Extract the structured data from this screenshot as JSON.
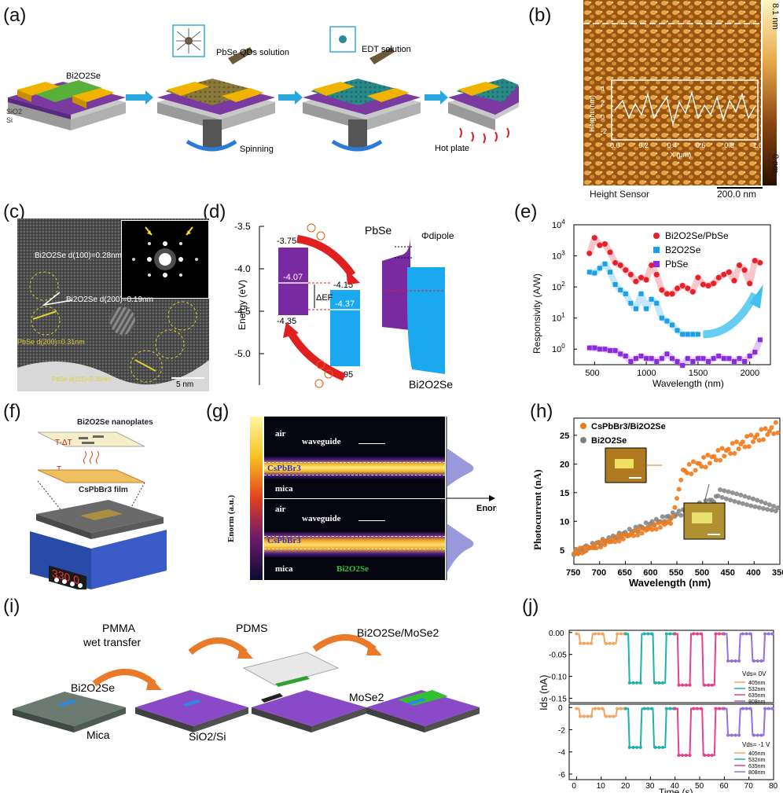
{
  "panel_labels": {
    "a": "(a)",
    "b": "(b)",
    "c": "(c)",
    "d": "(d)",
    "e": "(e)",
    "f": "(f)",
    "g": "(g)",
    "h": "(h)",
    "i": "(i)",
    "j": "(j)"
  },
  "panel_a": {
    "bi2o2se": "Bi2O2Se",
    "sio2": "SiO2",
    "si": "Si",
    "pbse_solution": "PbSe QDs solution",
    "edt_solution": "EDT solution",
    "spinning": "Spinning",
    "hot_plate": "Hot plate"
  },
  "panel_b": {
    "scale_max": "8.1 nm",
    "scale_min": "0 nm",
    "sensor": "Height Sensor",
    "scalebar": "200.0 nm",
    "ylabel": "Height (nm)",
    "xlabel": "X (μm)",
    "yticks": [
      "4",
      "2",
      "0",
      "-2",
      "-4"
    ],
    "xticks": [
      "0.0",
      "0.2",
      "0.4",
      "0.6",
      "0.8",
      "1.0"
    ]
  },
  "panel_c": {
    "d100": "Bi2O2Se d(100)=0.28nm",
    "d200": "Bi2O2Se d(200)=0.19nm",
    "pbse200": "PbSe d(200)=0.31nm",
    "pbse111": "PbSe d(111)=0.35nm",
    "scalebar": "5 nm"
  },
  "panel_d": {
    "ylabel": "Energy (eV)",
    "yticks": [
      "-3.5",
      "-4.0",
      "-4.5",
      "-5.0"
    ],
    "values": {
      "cb_pbse": "-3.75",
      "vb_pbse": "-4.35",
      "ef_pbse": "-4.07",
      "cb_bi": "-4.15",
      "ef_bi": "-4.37",
      "vb_bi": "-4.95"
    },
    "delta_ef": "ΔEF",
    "pbse": "PbSe",
    "phi": "Φdipole",
    "bi2o2se": "Bi2O2Se"
  },
  "panel_e": {
    "ylabel": "Responsivity (A/W)",
    "xlabel": "Wavelength (nm)",
    "xticks": [
      "500",
      "1000",
      "1500",
      "2000"
    ],
    "yticks": [
      "10^4",
      "10^3",
      "10^2",
      "10^1",
      "10^0"
    ],
    "legend": [
      "Bi2O2Se/PbSe",
      "B2O2Se",
      "PbSe"
    ],
    "colors": {
      "hetero": "#e8202a",
      "bi": "#1aa0e8",
      "pbse": "#8a2be2"
    }
  },
  "panel_f": {
    "top": "Bi2O2Se nanoplates",
    "t_dt": "T-ΔT",
    "t": "T",
    "film": "CsPbBr3 film",
    "display": "330.0"
  },
  "panel_g": {
    "scale": "Enorm (a.u.)",
    "air": "air",
    "waveguide": "waveguide",
    "cspbbr3": "CsPbBr3",
    "mica": "mica",
    "bi2o2se": "Bi2O2Se",
    "enorm": "Enorm"
  },
  "panel_h": {
    "ylabel": "Photocurrent (nA)",
    "xlabel": "Wavelength (nm)",
    "legend": [
      "CsPbBr3/Bi2O2Se",
      "Bi2O2Se"
    ],
    "xticks": [
      "750",
      "700",
      "650",
      "600",
      "550",
      "500",
      "450",
      "400",
      "350"
    ],
    "yticks": [
      "5",
      "10",
      "15",
      "20",
      "25"
    ],
    "colors": {
      "hetero": "#f07a1a",
      "bi": "#808080"
    }
  },
  "panel_i": {
    "pmma": "PMMA",
    "wet": "wet transfer",
    "pdms": "PDMS",
    "hetero": "Bi2O2Se/MoSe2",
    "bi": "Bi2O2Se",
    "mica": "Mica",
    "sio2si": "SiO2/Si",
    "mose2": "MoSe2"
  },
  "panel_j": {
    "ylabel": "Ids (nA)",
    "xlabel": "Time (s)",
    "xticks": [
      "0",
      "10",
      "20",
      "30",
      "40",
      "50",
      "60",
      "70",
      "80"
    ],
    "yticks_top": [
      "0.00",
      "-0.05",
      "-0.10",
      "-0.15"
    ],
    "yticks_bot": [
      "0",
      "-2",
      "-4",
      "-6"
    ],
    "vds_top": "Vds= 0V",
    "vds_bot": "Vds= -1 V",
    "legend": [
      "405nm",
      "532nm",
      "635nm",
      "808nm"
    ],
    "colors": [
      "#f4a460",
      "#20b2aa",
      "#e8408a",
      "#9370db"
    ]
  }
}
